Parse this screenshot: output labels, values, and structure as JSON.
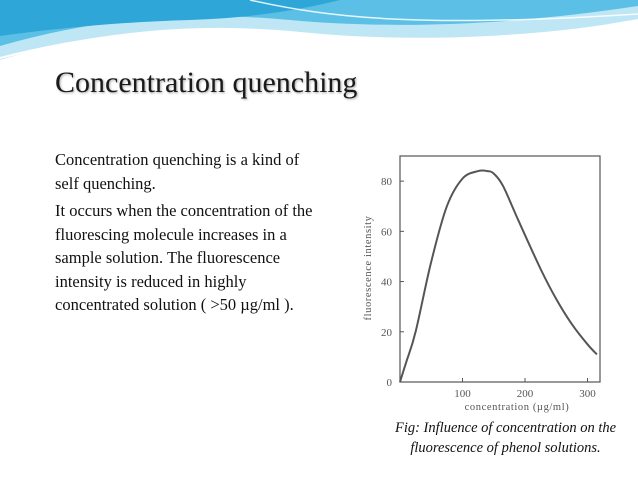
{
  "slide": {
    "title": "Concentration quenching",
    "paragraphs": [
      "Concentration quenching is a kind of self quenching.",
      "It occurs when the concentration of the fluorescing molecule increases in a sample solution. The fluorescence intensity is reduced in highly concentrated solution ( >50 µg/ml )."
    ],
    "caption": {
      "line1": "Fig: Influence of concentration on the",
      "line2": "fluorescence  of phenol solutions."
    }
  },
  "colors": {
    "banner_light": "#bfe6f5",
    "banner_mid": "#5cc0e6",
    "curve": "#555555"
  },
  "chart_data": {
    "type": "line",
    "xlabel": "concentration  (µg/ml)",
    "ylabel": "fluorescence   intensity",
    "xlim": [
      0,
      320
    ],
    "ylim": [
      0,
      90
    ],
    "xticks": [
      100,
      200,
      300
    ],
    "yticks": [
      0,
      20,
      40,
      60,
      80
    ],
    "grid": false,
    "series": [
      {
        "x": [
          0,
          10,
          25,
          50,
          75,
          100,
          125,
          140,
          150,
          165,
          190,
          225,
          250,
          275,
          300,
          315
        ],
        "y": [
          0,
          8,
          20,
          48,
          70,
          81,
          84,
          84,
          83,
          78,
          64,
          45,
          33,
          23,
          15,
          11
        ]
      }
    ]
  }
}
